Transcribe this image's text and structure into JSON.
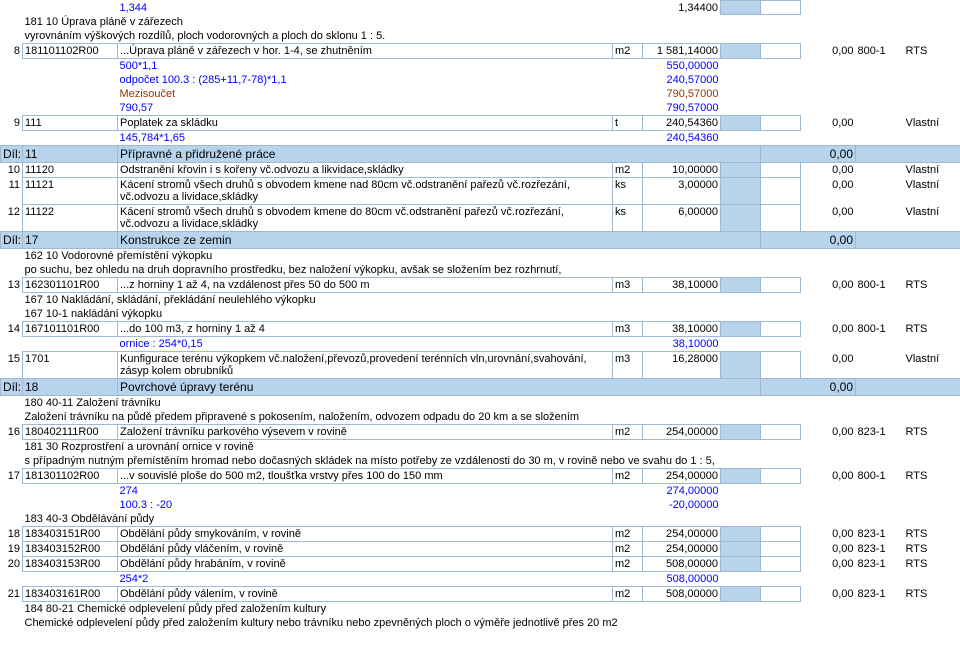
{
  "colors": {
    "highlight": "#b8d4ed",
    "border": "#a0b8d0",
    "blue": "#0000ff",
    "brown": "#993300",
    "text": "#000000",
    "background": "#ffffff"
  },
  "rows": [
    {
      "type": "calc",
      "num": "",
      "code": "",
      "desc_blue": "1,344",
      "qty": "1,34400",
      "has_bar": true
    },
    {
      "type": "note",
      "text": "181 10 Úprava pláně v zářezech"
    },
    {
      "type": "note",
      "text": "vyrovnáním výškových rozdílů, ploch vodorovných a ploch do sklonu 1 : 5."
    },
    {
      "type": "item",
      "num": "8",
      "code": "181101102R00",
      "desc": "...Úprava pláně v zářezech v hor. 1-4, se zhutněním",
      "unit": "m2",
      "qty": "1 581,14000",
      "has_bar": true,
      "price": "0,00",
      "cat": "800-1",
      "itype": "RTS"
    },
    {
      "type": "calc",
      "desc_blue": "500*1,1",
      "qty": "550,00000",
      "qty_blue": true
    },
    {
      "type": "calc",
      "desc_blue": "odpočet 100.3 : (285+11,7-78)*1,1",
      "qty": "240,57000",
      "qty_blue": true
    },
    {
      "type": "calc",
      "desc_brown": "Mezisoučet",
      "qty": "790,57000",
      "qty_brown": true
    },
    {
      "type": "calc",
      "desc_blue": "790,57",
      "qty": "790,57000",
      "qty_blue": true
    },
    {
      "type": "item",
      "num": "9",
      "code": "111",
      "desc": "Poplatek za skládku",
      "unit": "t",
      "qty": "240,54360",
      "has_bar": true,
      "price": "0,00",
      "itype": "Vlastní"
    },
    {
      "type": "calc",
      "desc_blue": "145,784*1,65",
      "qty": "240,54360",
      "qty_blue": true
    },
    {
      "type": "section",
      "label": "Díl:",
      "num": "11",
      "title": "Přípravné a přidružené práce",
      "total": "0,00"
    },
    {
      "type": "item",
      "num": "10",
      "code": "11120",
      "desc": "Odstranění křovin i s kořeny vč.odvozu a likvidace,skládky",
      "unit": "m2",
      "qty": "10,00000",
      "has_bar": true,
      "price": "0,00",
      "itype": "Vlastní"
    },
    {
      "type": "item",
      "num": "11",
      "code": "11121",
      "desc": "Kácení stromů všech druhů s obvodem kmene nad 80cm vč.odstranění pařezů vč.rozřezání, vč.odvozu a lividace,skládky",
      "unit": "ks",
      "qty": "3,00000",
      "has_bar": true,
      "price": "0,00",
      "itype": "Vlastní"
    },
    {
      "type": "item",
      "num": "12",
      "code": "11122",
      "desc": "Kácení stromů všech druhů s obvodem kmene do 80cm vč.odstranění pařezů vč.rozřezání, vč.odvozu a lividace,skládky",
      "unit": "ks",
      "qty": "6,00000",
      "has_bar": true,
      "price": "0,00",
      "itype": "Vlastní"
    },
    {
      "type": "section",
      "label": "Díl:",
      "num": "17",
      "title": "Konstrukce ze zemin",
      "total": "0,00"
    },
    {
      "type": "note",
      "text": "162 10 Vodorovné přemístění výkopku"
    },
    {
      "type": "note",
      "text": "po suchu, bez ohledu na druh dopravního prostředku, bez naložení výkopku, avšak se složením bez rozhrnutí,"
    },
    {
      "type": "item",
      "num": "13",
      "code": "162301101R00",
      "desc": "...z horniny 1 až 4, na vzdálenost přes 50  do 500 m",
      "unit": "m3",
      "qty": "38,10000",
      "has_bar": true,
      "price": "0,00",
      "cat": "800-1",
      "itype": "RTS"
    },
    {
      "type": "note",
      "text": "167 10 Nakládání, skládání, překládání neulehlého výkopku"
    },
    {
      "type": "note",
      "text": "167 10-1 nakládání výkopku"
    },
    {
      "type": "item",
      "num": "14",
      "code": "167101101R00",
      "desc": "...do 100 m3, z horniny 1 až 4",
      "unit": "m3",
      "qty": "38,10000",
      "has_bar": true,
      "price": "0,00",
      "cat": "800-1",
      "itype": "RTS"
    },
    {
      "type": "calc",
      "desc_blue": "ornice : 254*0,15",
      "qty": "38,10000",
      "qty_blue": true
    },
    {
      "type": "item",
      "num": "15",
      "code": "1701",
      "desc": "Kunfigurace terénu výkopkem vč.naložení,převozů,provedení terénních vln,urovnání,svahování, zásyp kolem obrubníků",
      "unit": "m3",
      "qty": "16,28000",
      "has_bar": true,
      "price": "0,00",
      "itype": "Vlastní"
    },
    {
      "type": "section",
      "label": "Díl:",
      "num": "18",
      "title": "Povrchové úpravy terénu",
      "total": "0,00"
    },
    {
      "type": "note",
      "text": "180 40-11 Založení trávníku"
    },
    {
      "type": "note",
      "text": "Založení trávníku na půdě předem připravené s pokosením, naložením, odvozem odpadu do 20 km a se složením"
    },
    {
      "type": "item",
      "num": "16",
      "code": "180402111R00",
      "desc": "Založení trávníku parkového výsevem v rovině",
      "unit": "m2",
      "qty": "254,00000",
      "has_bar": true,
      "price": "0,00",
      "cat": "823-1",
      "itype": "RTS"
    },
    {
      "type": "note",
      "text": "181 30 Rozprostření a urovnání ornice v rovině"
    },
    {
      "type": "note",
      "text": "s případným nutným přemístěním hromad nebo dočasných skládek na místo potřeby ze vzdálenosti do 30 m, v rovině nebo ve svahu do 1 : 5,"
    },
    {
      "type": "item",
      "num": "17",
      "code": "181301102R00",
      "desc": "...v souvislé ploše do 500 m2, tloušťka vrstvy přes 100 do 150 mm",
      "unit": "m2",
      "qty": "254,00000",
      "has_bar": true,
      "price": "0,00",
      "cat": "800-1",
      "itype": "RTS"
    },
    {
      "type": "calc",
      "desc_blue": "274",
      "qty": "274,00000",
      "qty_blue": true
    },
    {
      "type": "calc",
      "desc_blue": "100.3 : -20",
      "qty": "-20,00000",
      "qty_blue": true
    },
    {
      "type": "note",
      "text": "183 40-3 Obdělávání půdy"
    },
    {
      "type": "item",
      "num": "18",
      "code": "183403151R00",
      "desc": "Obdělání půdy smykováním, v rovině",
      "unit": "m2",
      "qty": "254,00000",
      "has_bar": true,
      "price": "0,00",
      "cat": "823-1",
      "itype": "RTS"
    },
    {
      "type": "item",
      "num": "19",
      "code": "183403152R00",
      "desc": "Obdělání půdy vláčením, v rovině",
      "unit": "m2",
      "qty": "254,00000",
      "has_bar": true,
      "price": "0,00",
      "cat": "823-1",
      "itype": "RTS"
    },
    {
      "type": "item",
      "num": "20",
      "code": "183403153R00",
      "desc": "Obdělání půdy hrabáním, v rovině",
      "unit": "m2",
      "qty": "508,00000",
      "has_bar": true,
      "price": "0,00",
      "cat": "823-1",
      "itype": "RTS"
    },
    {
      "type": "calc",
      "desc_blue": "254*2",
      "qty": "508,00000",
      "qty_blue": true
    },
    {
      "type": "item",
      "num": "21",
      "code": "183403161R00",
      "desc": "Obdělání půdy válením, v rovině",
      "unit": "m2",
      "qty": "508,00000",
      "has_bar": true,
      "price": "0,00",
      "cat": "823-1",
      "itype": "RTS"
    },
    {
      "type": "note",
      "text": "184 80-21 Chemické odplevelení půdy před založením kultury"
    },
    {
      "type": "note",
      "text": "Chemické odplevelení půdy před založením kultury nebo trávníku nebo zpevněných ploch o výměře jednotlivě přes 20 m2"
    }
  ]
}
